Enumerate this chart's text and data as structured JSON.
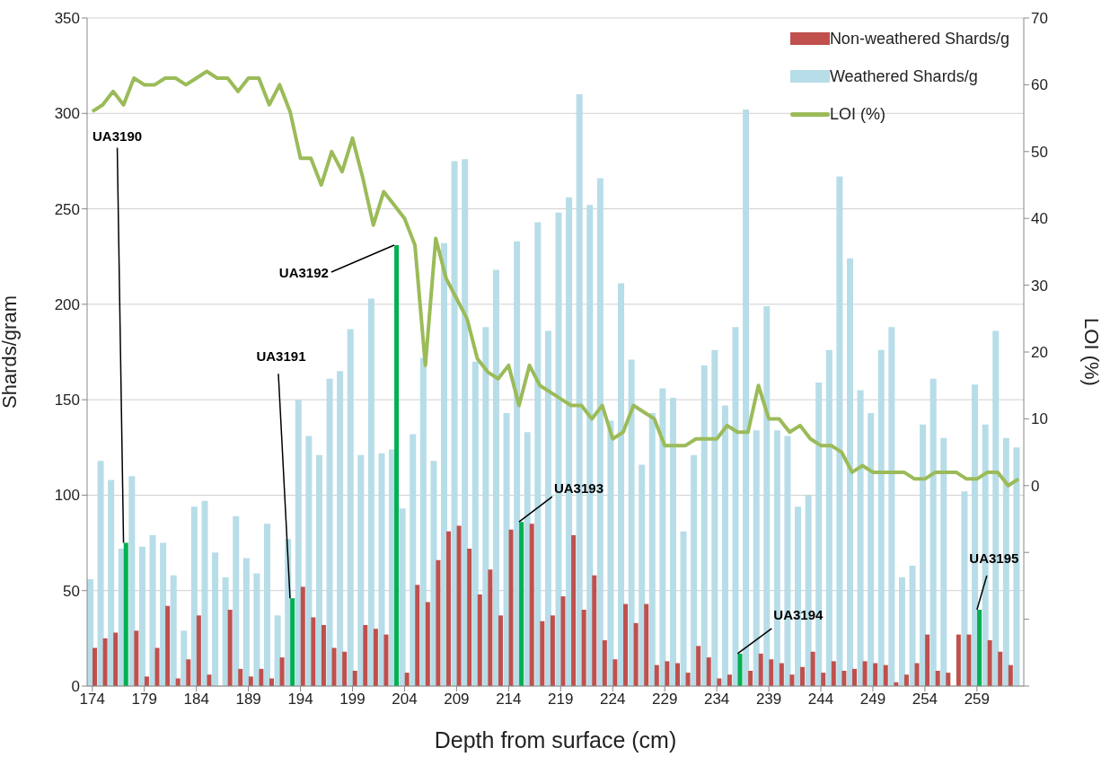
{
  "chart_data": {
    "type": "bar",
    "xlabel": "Depth from surface (cm)",
    "ylabel": "Shards/gram",
    "y2label": "LOI (%)",
    "x": [
      174,
      175,
      176,
      177,
      178,
      179,
      180,
      181,
      182,
      183,
      184,
      185,
      186,
      187,
      188,
      189,
      190,
      191,
      192,
      193,
      194,
      195,
      196,
      197,
      198,
      199,
      200,
      201,
      202,
      203,
      204,
      205,
      206,
      207,
      208,
      209,
      210,
      211,
      212,
      213,
      214,
      215,
      216,
      217,
      218,
      219,
      220,
      221,
      222,
      223,
      224,
      225,
      226,
      227,
      228,
      229,
      230,
      231,
      232,
      233,
      234,
      235,
      236,
      237,
      238,
      239,
      240,
      241,
      242,
      243,
      244,
      245,
      246,
      247,
      248,
      249,
      250,
      251,
      252,
      253,
      254,
      255,
      256,
      257,
      258,
      259,
      260,
      261,
      262,
      263
    ],
    "xlim": [
      173.5,
      263.5
    ],
    "xticks": [
      174,
      179,
      184,
      189,
      194,
      199,
      204,
      209,
      214,
      219,
      224,
      229,
      234,
      239,
      244,
      249,
      254,
      259
    ],
    "ylim": [
      0,
      350
    ],
    "yticks": [
      0,
      50,
      100,
      150,
      200,
      250,
      300,
      350
    ],
    "y2lim": [
      -30,
      70
    ],
    "y2ticks": [
      {
        "value": -30,
        "label": null
      },
      {
        "value": -20,
        "label": null
      },
      {
        "value": -10,
        "label": null
      },
      0,
      10,
      20,
      30,
      40,
      50,
      60,
      70
    ],
    "grid": "y",
    "legend": "top right",
    "series": [
      {
        "name": "Non-weathered Shards/g",
        "color": "#c0504d",
        "colors": [
          "#c0504d",
          "#c0504d",
          "#c0504d",
          "#00b050",
          "#c0504d",
          "#c0504d",
          "#c0504d",
          "#c0504d",
          "#c0504d",
          "#c0504d",
          "#c0504d",
          "#c0504d",
          "#c0504d",
          "#c0504d",
          "#c0504d",
          "#c0504d",
          "#c0504d",
          "#c0504d",
          "#c0504d",
          "#00b050",
          "#c0504d",
          "#c0504d",
          "#c0504d",
          "#c0504d",
          "#c0504d",
          "#c0504d",
          "#c0504d",
          "#c0504d",
          "#c0504d",
          "#00b050",
          "#c0504d",
          "#c0504d",
          "#c0504d",
          "#c0504d",
          "#c0504d",
          "#c0504d",
          "#c0504d",
          "#c0504d",
          "#c0504d",
          "#c0504d",
          "#c0504d",
          "#00b050",
          "#c0504d",
          "#c0504d",
          "#c0504d",
          "#c0504d",
          "#c0504d",
          "#c0504d",
          "#c0504d",
          "#c0504d",
          "#c0504d",
          "#c0504d",
          "#c0504d",
          "#c0504d",
          "#c0504d",
          "#c0504d",
          "#c0504d",
          "#c0504d",
          "#c0504d",
          "#c0504d",
          "#c0504d",
          "#c0504d",
          "#00b050",
          "#c0504d",
          "#c0504d",
          "#c0504d",
          "#c0504d",
          "#c0504d",
          "#c0504d",
          "#c0504d",
          "#c0504d",
          "#c0504d",
          "#c0504d",
          "#c0504d",
          "#c0504d",
          "#c0504d",
          "#c0504d",
          "#c0504d",
          "#c0504d",
          "#c0504d",
          "#c0504d",
          "#c0504d",
          "#c0504d",
          "#c0504d",
          "#c0504d",
          "#00b050",
          "#c0504d",
          "#c0504d",
          "#c0504d",
          "#c0504d"
        ],
        "values": [
          20,
          25,
          28,
          75,
          29,
          5,
          20,
          42,
          4,
          14,
          37,
          6,
          null,
          40,
          9,
          5,
          9,
          4,
          15,
          46,
          52,
          36,
          32,
          20,
          18,
          8,
          32,
          30,
          27,
          231,
          7,
          53,
          44,
          66,
          81,
          84,
          72,
          48,
          61,
          37,
          82,
          86,
          85,
          34,
          37,
          47,
          79,
          40,
          58,
          24,
          14,
          43,
          33,
          43,
          11,
          13,
          12,
          7,
          21,
          15,
          4,
          6,
          17,
          8,
          17,
          14,
          12,
          6,
          10,
          18,
          7,
          13,
          8,
          9,
          13,
          12,
          11,
          2,
          6,
          12,
          27,
          8,
          7,
          27,
          27,
          40,
          24,
          18,
          11,
          null
        ]
      },
      {
        "name": "Weathered Shards/g",
        "color": "#b7dde8",
        "values": [
          56,
          118,
          108,
          72,
          110,
          73,
          79,
          75,
          58,
          29,
          94,
          97,
          70,
          57,
          89,
          67,
          59,
          85,
          37,
          77,
          150,
          131,
          121,
          161,
          165,
          187,
          121,
          203,
          122,
          124,
          93,
          132,
          172,
          118,
          232,
          275,
          276,
          170,
          188,
          218,
          143,
          233,
          133,
          243,
          186,
          248,
          256,
          310,
          252,
          266,
          139,
          211,
          171,
          116,
          143,
          156,
          151,
          81,
          121,
          168,
          176,
          147,
          188,
          302,
          134,
          199,
          134,
          131,
          94,
          100,
          159,
          176,
          267,
          224,
          155,
          143,
          176,
          188,
          57,
          63,
          137,
          161,
          130,
          null,
          102,
          158,
          137,
          186,
          130,
          125
        ]
      },
      {
        "name": "LOI (%)",
        "type": "line",
        "axis": "y2",
        "color": "#9bbb59",
        "values": [
          56,
          57,
          59,
          57,
          61,
          60,
          60,
          61,
          61,
          60,
          61,
          62,
          61,
          61,
          59,
          61,
          61,
          57,
          60,
          56,
          49,
          49,
          45,
          50,
          47,
          52,
          46,
          39,
          44,
          42,
          40,
          36,
          18,
          37,
          31,
          28,
          25,
          19,
          17,
          16,
          18,
          12,
          18,
          15,
          14,
          13,
          12,
          12,
          10,
          12,
          7,
          8,
          12,
          11,
          10,
          6,
          6,
          6,
          7,
          7,
          7,
          9,
          8,
          8,
          15,
          10,
          10,
          8,
          9,
          7,
          6,
          6,
          5,
          2,
          3,
          2,
          2,
          2,
          2,
          1,
          1,
          2,
          2,
          2,
          1,
          1,
          2,
          2,
          0,
          1
        ]
      }
    ],
    "annotations": [
      {
        "text": "UA3190",
        "x": 177,
        "y": 75
      },
      {
        "text": "UA3191",
        "x": 193,
        "y": 46
      },
      {
        "text": "UA3192",
        "x": 203,
        "y": 231
      },
      {
        "text": "UA3193",
        "x": 215,
        "y": 86
      },
      {
        "text": "UA3194",
        "x": 236,
        "y": 17
      },
      {
        "text": "UA3195",
        "x": 259,
        "y": 40
      }
    ]
  }
}
